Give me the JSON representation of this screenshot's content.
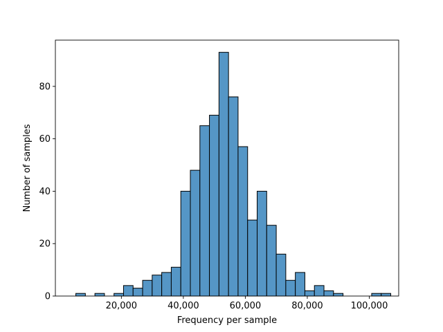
{
  "chart_data": {
    "type": "bar",
    "subtype": "histogram",
    "title": "",
    "xlabel": "Frequency per sample",
    "ylabel": "Number of samples",
    "xlim": [
      -1300,
      109500
    ],
    "ylim": [
      0,
      97.65
    ],
    "grid": false,
    "legend": "none",
    "bar_color": "#5596c6",
    "edge_color": "#000000",
    "bin_width": 3080,
    "bins": [
      {
        "x0": 5300,
        "count": 1
      },
      {
        "x0": 8380,
        "count": 0
      },
      {
        "x0": 11460,
        "count": 1
      },
      {
        "x0": 14540,
        "count": 0
      },
      {
        "x0": 17620,
        "count": 1
      },
      {
        "x0": 20700,
        "count": 4
      },
      {
        "x0": 23780,
        "count": 3
      },
      {
        "x0": 26860,
        "count": 6
      },
      {
        "x0": 29940,
        "count": 8
      },
      {
        "x0": 33020,
        "count": 9
      },
      {
        "x0": 36100,
        "count": 11
      },
      {
        "x0": 39180,
        "count": 40
      },
      {
        "x0": 42260,
        "count": 48
      },
      {
        "x0": 45340,
        "count": 65
      },
      {
        "x0": 48420,
        "count": 69
      },
      {
        "x0": 51500,
        "count": 93
      },
      {
        "x0": 54580,
        "count": 76
      },
      {
        "x0": 57660,
        "count": 57
      },
      {
        "x0": 60740,
        "count": 29
      },
      {
        "x0": 63820,
        "count": 40
      },
      {
        "x0": 66900,
        "count": 27
      },
      {
        "x0": 69980,
        "count": 16
      },
      {
        "x0": 73060,
        "count": 6
      },
      {
        "x0": 76140,
        "count": 9
      },
      {
        "x0": 79220,
        "count": 2
      },
      {
        "x0": 82300,
        "count": 4
      },
      {
        "x0": 85380,
        "count": 2
      },
      {
        "x0": 88460,
        "count": 1
      },
      {
        "x0": 91540,
        "count": 0
      },
      {
        "x0": 94620,
        "count": 0
      },
      {
        "x0": 97700,
        "count": 0
      },
      {
        "x0": 100780,
        "count": 1
      },
      {
        "x0": 103860,
        "count": 1
      }
    ],
    "xticks": [
      {
        "value": 20000,
        "label": "20,000"
      },
      {
        "value": 40000,
        "label": "40,000"
      },
      {
        "value": 60000,
        "label": "60,000"
      },
      {
        "value": 80000,
        "label": "80,000"
      },
      {
        "value": 100000,
        "label": "100,000"
      }
    ],
    "yticks": [
      {
        "value": 0,
        "label": "0"
      },
      {
        "value": 20,
        "label": "20"
      },
      {
        "value": 40,
        "label": "40"
      },
      {
        "value": 60,
        "label": "60"
      },
      {
        "value": 80,
        "label": "80"
      }
    ]
  }
}
